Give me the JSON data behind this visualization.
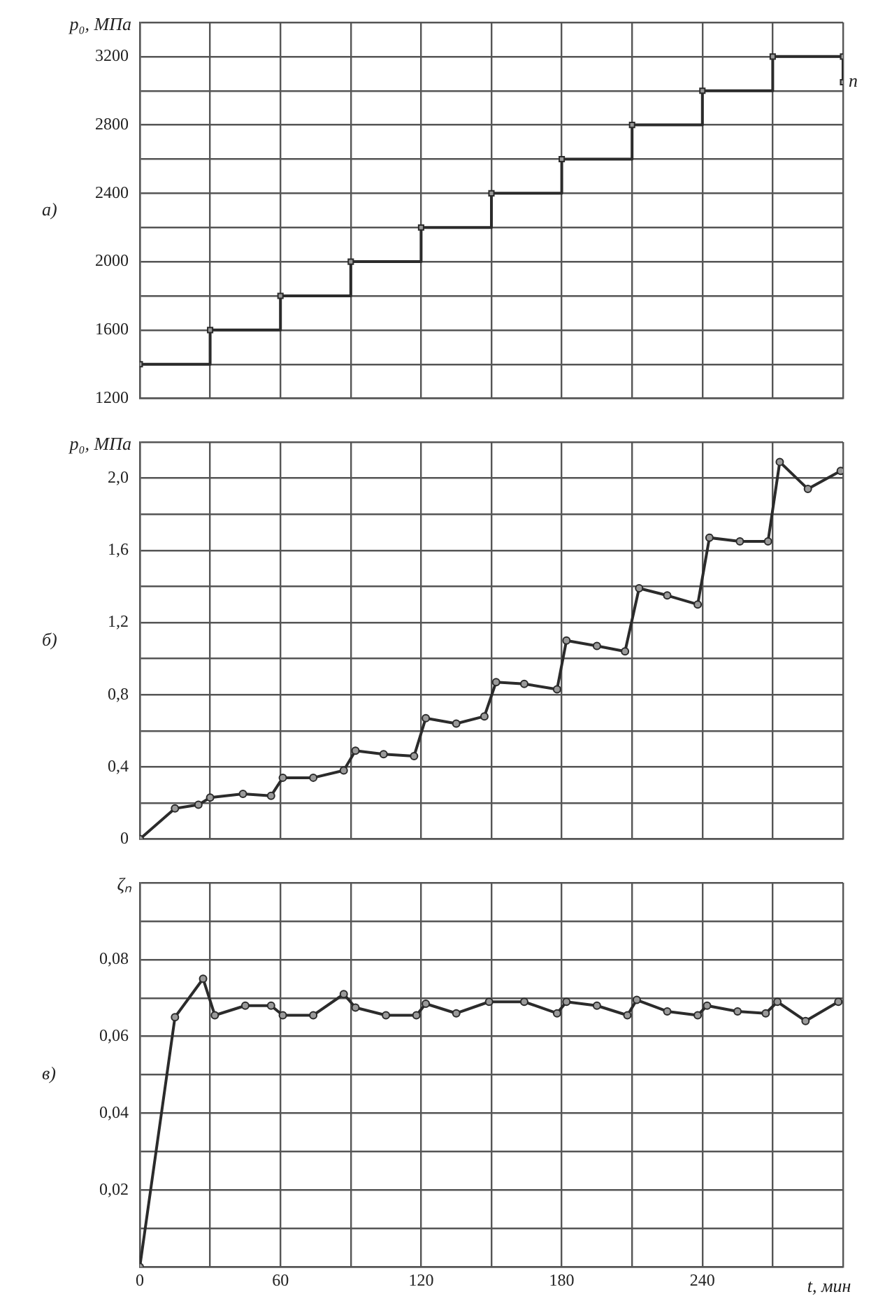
{
  "chart_data": [
    {
      "type": "step",
      "ylabel": "p₀, МПа",
      "annotations": [
        "а)",
        {
          "text": "п",
          "x": 300,
          "y": 3050
        }
      ],
      "x": [
        0,
        30,
        60,
        90,
        120,
        150,
        180,
        210,
        240,
        270,
        300,
        300
      ],
      "series": [
        {
          "color": "#2b2b2b",
          "values": [
            1400,
            1600,
            1800,
            2000,
            2200,
            2400,
            2600,
            2800,
            3000,
            3200,
            3200,
            3050
          ]
        }
      ],
      "xlim": [
        0,
        300
      ],
      "xticks": [
        {
          "value": 0,
          "label": null
        },
        {
          "value": 30,
          "label": null
        },
        {
          "value": 60,
          "label": null
        },
        {
          "value": 90,
          "label": null
        },
        {
          "value": 120,
          "label": null
        },
        {
          "value": 150,
          "label": null
        },
        {
          "value": 180,
          "label": null
        },
        {
          "value": 210,
          "label": null
        },
        {
          "value": 240,
          "label": null
        },
        {
          "value": 270,
          "label": null
        },
        {
          "value": 300,
          "label": null
        }
      ],
      "ylim": [
        1200,
        3400
      ],
      "yticks": [
        1200,
        {
          "value": 1400,
          "label": null
        },
        1600,
        {
          "value": 1800,
          "label": null
        },
        2000,
        {
          "value": 2200,
          "label": null
        },
        2400,
        {
          "value": 2600,
          "label": null
        },
        2800,
        {
          "value": 3000,
          "label": null
        },
        3200,
        {
          "value": 3400,
          "label": null
        }
      ],
      "tick_labels": "y",
      "grid": true,
      "legend": false,
      "marker": "square",
      "line_style": "solid"
    },
    {
      "type": "line",
      "ylabel": "p₀, МПа",
      "annotations": [
        "б)"
      ],
      "x": [
        0,
        15,
        25,
        30,
        44,
        56,
        61,
        74,
        87,
        92,
        104,
        117,
        122,
        135,
        147,
        152,
        164,
        178,
        182,
        195,
        207,
        213,
        225,
        238,
        243,
        256,
        268,
        273,
        285,
        299
      ],
      "series": [
        {
          "color": "#2b2b2b",
          "values": [
            0,
            0.17,
            0.19,
            0.23,
            0.25,
            0.24,
            0.34,
            0.34,
            0.38,
            0.49,
            0.47,
            0.46,
            0.67,
            0.64,
            0.68,
            0.87,
            0.86,
            0.83,
            1.1,
            1.07,
            1.04,
            1.39,
            1.35,
            1.3,
            1.67,
            1.65,
            1.65,
            2.09,
            1.94,
            2.04
          ]
        }
      ],
      "xlim": [
        0,
        300
      ],
      "xticks": [
        {
          "value": 0,
          "label": null
        },
        {
          "value": 30,
          "label": null
        },
        {
          "value": 60,
          "label": null
        },
        {
          "value": 90,
          "label": null
        },
        {
          "value": 120,
          "label": null
        },
        {
          "value": 150,
          "label": null
        },
        {
          "value": 180,
          "label": null
        },
        {
          "value": 210,
          "label": null
        },
        {
          "value": 240,
          "label": null
        },
        {
          "value": 270,
          "label": null
        },
        {
          "value": 300,
          "label": null
        }
      ],
      "ylim": [
        0,
        2.2
      ],
      "yticks": [
        0,
        {
          "value": 0.2,
          "label": null
        },
        {
          "value": 0.4,
          "label": "0,4"
        },
        {
          "value": 0.6,
          "label": null
        },
        {
          "value": 0.8,
          "label": "0,8"
        },
        {
          "value": 1.0,
          "label": null
        },
        {
          "value": 1.2,
          "label": "1,2"
        },
        {
          "value": 1.4,
          "label": null
        },
        {
          "value": 1.6,
          "label": "1,6"
        },
        {
          "value": 1.8,
          "label": null
        },
        {
          "value": 2.0,
          "label": "2,0"
        },
        {
          "value": 2.2,
          "label": null
        }
      ],
      "tick_labels": "y",
      "grid": true,
      "legend": false,
      "marker": "circle",
      "line_style": "solid"
    },
    {
      "type": "line",
      "ylabel": "ζₙ",
      "xlabel": "t, мин",
      "annotations": [
        "в)"
      ],
      "x": [
        0,
        15,
        27,
        32,
        45,
        56,
        61,
        74,
        87,
        92,
        105,
        118,
        122,
        135,
        149,
        164,
        178,
        182,
        195,
        208,
        212,
        225,
        238,
        242,
        255,
        267,
        272,
        284,
        298
      ],
      "series": [
        {
          "color": "#2b2b2b",
          "values": [
            0,
            0.065,
            0.075,
            0.0655,
            0.068,
            0.068,
            0.0655,
            0.0655,
            0.071,
            0.0675,
            0.0655,
            0.0655,
            0.0685,
            0.066,
            0.069,
            0.069,
            0.066,
            0.069,
            0.068,
            0.0655,
            0.0695,
            0.0665,
            0.0655,
            0.068,
            0.0665,
            0.066,
            0.069,
            0.064,
            0.069
          ]
        }
      ],
      "xlim": [
        0,
        300
      ],
      "xticks": [
        0,
        {
          "value": 30,
          "label": null
        },
        60,
        {
          "value": 90,
          "label": null
        },
        120,
        {
          "value": 150,
          "label": null
        },
        180,
        {
          "value": 210,
          "label": null
        },
        240,
        {
          "value": 270,
          "label": null
        },
        {
          "value": 300,
          "label": null
        }
      ],
      "ylim": [
        0,
        0.1
      ],
      "yticks": [
        {
          "value": 0,
          "label": null
        },
        {
          "value": 0.01,
          "label": null
        },
        {
          "value": 0.02,
          "label": "0,02"
        },
        {
          "value": 0.03,
          "label": null
        },
        {
          "value": 0.04,
          "label": "0,04"
        },
        {
          "value": 0.05,
          "label": null
        },
        {
          "value": 0.06,
          "label": "0,06"
        },
        {
          "value": 0.07,
          "label": null
        },
        {
          "value": 0.08,
          "label": "0,08"
        },
        {
          "value": 0.09,
          "label": null
        },
        {
          "value": 0.1,
          "label": null
        }
      ],
      "grid": true,
      "legend": false,
      "marker": "circle",
      "line_style": "solid"
    }
  ]
}
